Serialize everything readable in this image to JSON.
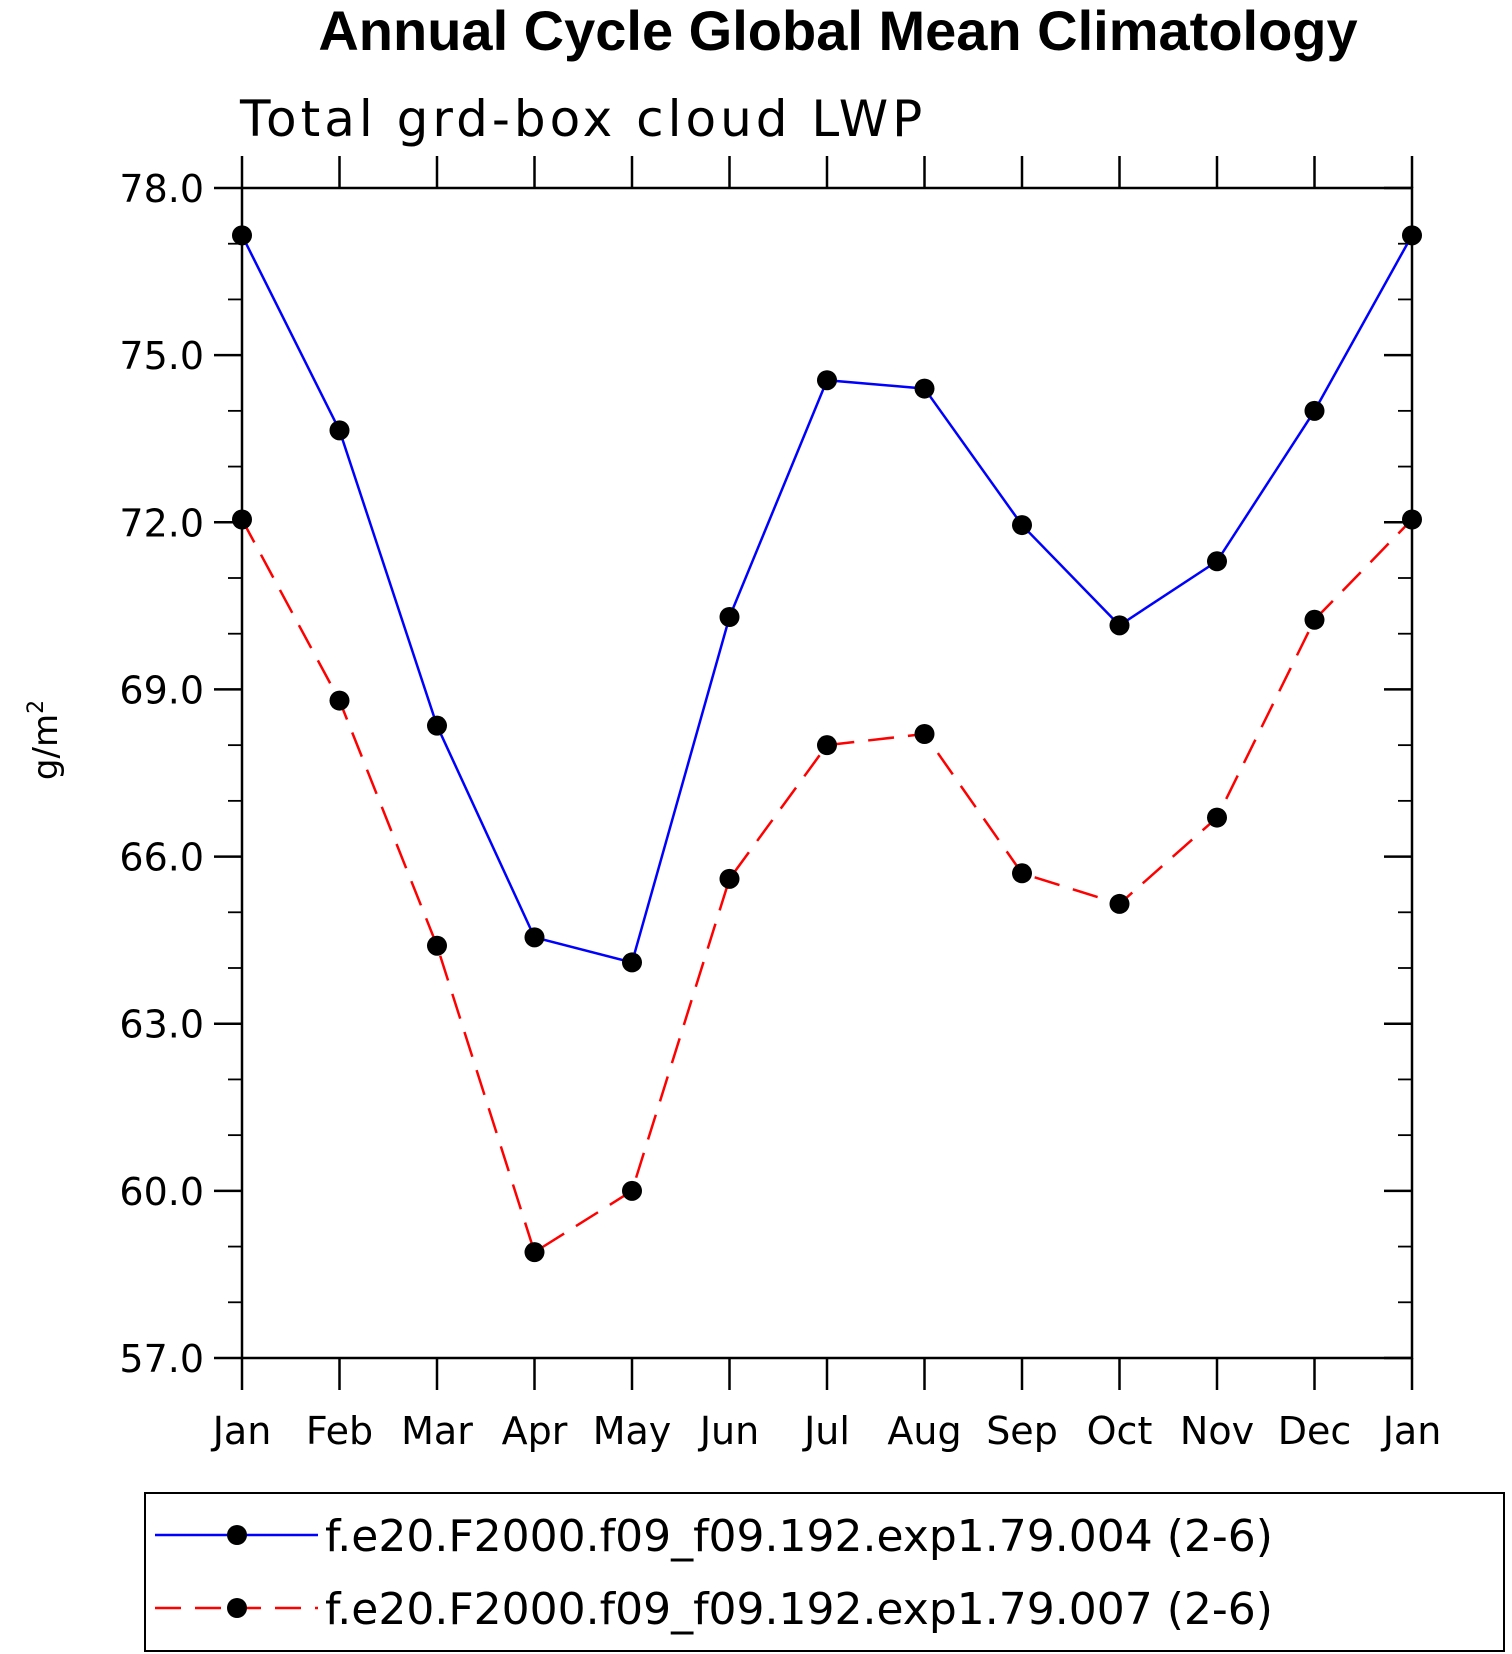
{
  "chart_data": {
    "type": "line",
    "title": "Annual Cycle Global Mean Climatology",
    "subtitle": "Total grd-box cloud LWP",
    "ylabel": "g/m",
    "ylabel_superscript": "2",
    "xlabel": "",
    "ylim": [
      57.0,
      78.0
    ],
    "yticks": [
      "78.0",
      "75.0",
      "72.0",
      "69.0",
      "66.0",
      "63.0",
      "60.0",
      "57.0"
    ],
    "ytick_values": [
      78.0,
      75.0,
      72.0,
      69.0,
      66.0,
      63.0,
      60.0,
      57.0
    ],
    "y_minor_step": 1.0,
    "categories": [
      "Jan",
      "Feb",
      "Mar",
      "Apr",
      "May",
      "Jun",
      "Jul",
      "Aug",
      "Sep",
      "Oct",
      "Nov",
      "Dec",
      "Jan"
    ],
    "grid": false,
    "legend_position": "bottom",
    "series": [
      {
        "name": "f.e20.F2000.f09_f09.192.exp1.79.004 (2-6)",
        "color": "#0000ff",
        "line_style": "solid",
        "marker": "filled-circle",
        "values": [
          77.15,
          73.65,
          68.35,
          64.55,
          64.1,
          70.3,
          74.55,
          74.4,
          71.95,
          70.15,
          71.3,
          74.0,
          77.15
        ]
      },
      {
        "name": "f.e20.F2000.f09_f09.192.exp1.79.007 (2-6)",
        "color": "#ff0000",
        "line_style": "dashed",
        "marker": "filled-circle",
        "values": [
          72.05,
          68.8,
          64.4,
          58.9,
          60.0,
          65.6,
          68.0,
          68.2,
          65.7,
          65.15,
          66.7,
          70.25,
          72.05
        ]
      }
    ]
  }
}
